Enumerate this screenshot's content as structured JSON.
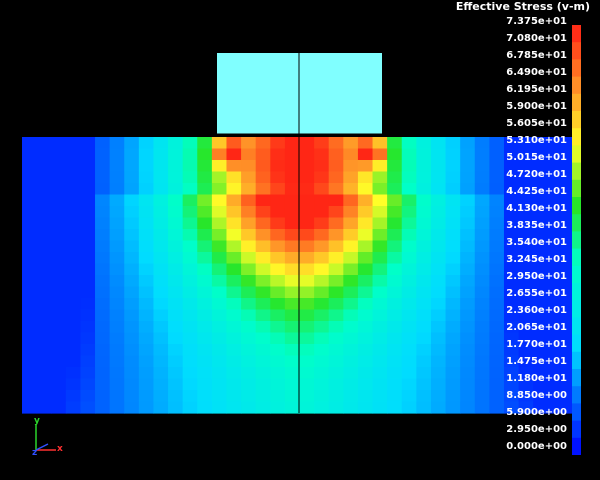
{
  "legend": {
    "title": "Effective Stress (v-m)",
    "labels": [
      "7.375e+01",
      "7.080e+01",
      "6.785e+01",
      "6.490e+01",
      "6.195e+01",
      "5.900e+01",
      "5.605e+01",
      "5.310e+01",
      "5.015e+01",
      "4.720e+01",
      "4.425e+01",
      "4.130e+01",
      "3.835e+01",
      "3.540e+01",
      "3.245e+01",
      "2.950e+01",
      "2.655e+01",
      "2.360e+01",
      "2.065e+01",
      "1.770e+01",
      "1.475e+01",
      "1.180e+01",
      "8.850e+00",
      "5.900e+00",
      "2.950e+00",
      "0.000e+00"
    ],
    "min": 0,
    "max": 73.75
  },
  "triad": {
    "x_label": "x",
    "y_label": "y",
    "z_label": "z"
  },
  "colors": {
    "background": "#000000",
    "punch": "#80ffff",
    "peak": "#ff3b1f",
    "edge_line": "#000000"
  }
}
